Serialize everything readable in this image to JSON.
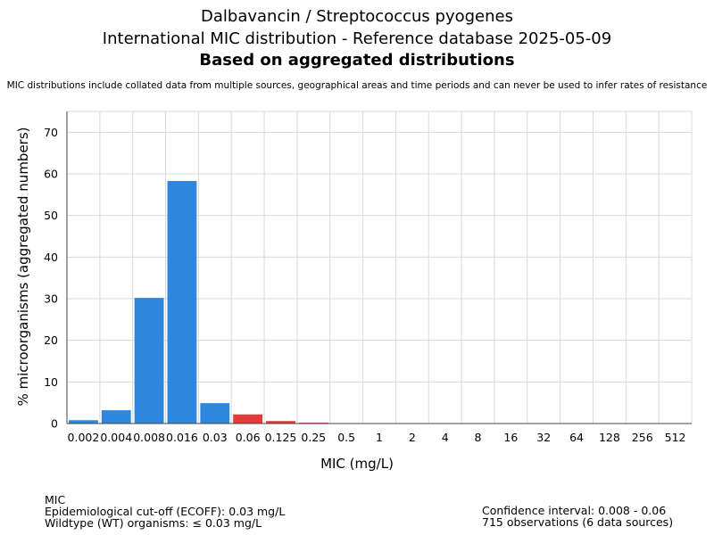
{
  "header": {
    "title_line1": "Dalbavancin / Streptococcus pyogenes",
    "title_line2": "International MIC distribution - Reference database 2025-05-09",
    "title_line3": "Based on aggregated distributions",
    "note": "MIC distributions include collated data from multiple sources, geographical areas and time periods and can never be used to infer rates of resistance"
  },
  "chart_data": {
    "type": "bar",
    "categories": [
      "0.002",
      "0.004",
      "0.008",
      "0.016",
      "0.03",
      "0.06",
      "0.125",
      "0.25",
      "0.5",
      "1",
      "2",
      "4",
      "8",
      "16",
      "32",
      "64",
      "128",
      "256",
      "512"
    ],
    "values": [
      0.8,
      3.2,
      30.2,
      58.3,
      4.9,
      2.2,
      0.6,
      0.2,
      0,
      0,
      0,
      0,
      0,
      0,
      0,
      0,
      0,
      0,
      0
    ],
    "bar_colors": [
      "#2f86dd",
      "#2f86dd",
      "#2f86dd",
      "#2f86dd",
      "#2f86dd",
      "#e33b3b",
      "#e33b3b",
      "#e33b3b",
      "#e33b3b",
      "#e33b3b",
      "#e33b3b",
      "#e33b3b",
      "#e33b3b",
      "#e33b3b",
      "#e33b3b",
      "#e33b3b",
      "#e33b3b",
      "#e33b3b",
      "#e33b3b"
    ],
    "xlabel": "MIC (mg/L)",
    "ylabel": "% microorganisms (aggregated numbers)",
    "ylim": [
      0,
      75
    ],
    "yticks": [
      0,
      10,
      20,
      30,
      40,
      50,
      60,
      70
    ],
    "grid": true
  },
  "colors": {
    "wildtype": "#2f86dd",
    "non_wildtype": "#e33b3b",
    "grid": "#d9d9d9",
    "axis": "#444444"
  },
  "footer": {
    "left_line1": "MIC",
    "left_line2": "Epidemiological cut-off (ECOFF): 0.03 mg/L",
    "left_line3": "Wildtype (WT) organisms: ≤ 0.03 mg/L",
    "right_line1": "Confidence interval: 0.008 - 0.06",
    "right_line2": "715 observations (6 data sources)"
  }
}
